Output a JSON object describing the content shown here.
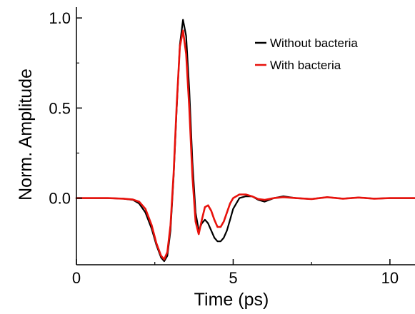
{
  "chart_data": {
    "type": "line",
    "xlabel": "Time (ps)",
    "ylabel": "Norm. Amplitude",
    "xlim": [
      0,
      10.8
    ],
    "ylim": [
      -0.37,
      1.06
    ],
    "xticks": [
      0,
      5,
      10
    ],
    "xtick_labels": [
      "0",
      "5",
      "10"
    ],
    "yticks": [
      0.0,
      0.5,
      1.0
    ],
    "ytick_labels": [
      "0.0",
      "0.5",
      "1.0"
    ],
    "grid": false,
    "legend_position": "top-right",
    "series": [
      {
        "name": "Without bacteria",
        "color": "#000000",
        "x": [
          0,
          0.5,
          1.0,
          1.5,
          1.8,
          2.0,
          2.2,
          2.4,
          2.55,
          2.7,
          2.8,
          2.9,
          3.0,
          3.1,
          3.2,
          3.3,
          3.4,
          3.5,
          3.6,
          3.7,
          3.8,
          3.9,
          4.0,
          4.1,
          4.2,
          4.3,
          4.4,
          4.5,
          4.6,
          4.7,
          4.8,
          4.9,
          5.0,
          5.2,
          5.4,
          5.6,
          5.8,
          6.0,
          6.3,
          6.6,
          7.0,
          7.5,
          8.0,
          8.5,
          9.0,
          9.5,
          10.0,
          10.5,
          10.8
        ],
        "y": [
          0.0,
          0.0,
          0.0,
          -0.003,
          -0.01,
          -0.03,
          -0.08,
          -0.17,
          -0.26,
          -0.33,
          -0.35,
          -0.32,
          -0.18,
          0.12,
          0.5,
          0.85,
          0.99,
          0.9,
          0.6,
          0.2,
          -0.08,
          -0.18,
          -0.14,
          -0.12,
          -0.14,
          -0.18,
          -0.22,
          -0.24,
          -0.24,
          -0.22,
          -0.18,
          -0.12,
          -0.06,
          0.0,
          0.01,
          0.01,
          -0.01,
          -0.02,
          0.0,
          0.01,
          0.0,
          -0.005,
          0.005,
          -0.003,
          0.003,
          -0.003,
          0.0,
          0.0,
          0.0
        ]
      },
      {
        "name": "With bacteria",
        "color": "#e8120c",
        "x": [
          0,
          0.5,
          1.0,
          1.5,
          1.8,
          2.0,
          2.2,
          2.4,
          2.55,
          2.7,
          2.8,
          2.9,
          3.0,
          3.1,
          3.2,
          3.3,
          3.4,
          3.5,
          3.6,
          3.7,
          3.8,
          3.9,
          4.0,
          4.1,
          4.2,
          4.3,
          4.4,
          4.5,
          4.6,
          4.7,
          4.8,
          4.9,
          5.0,
          5.2,
          5.4,
          5.6,
          5.8,
          6.0,
          6.3,
          6.6,
          7.0,
          7.5,
          8.0,
          8.5,
          9.0,
          9.5,
          10.0,
          10.5,
          10.8
        ],
        "y": [
          0.0,
          0.0,
          0.0,
          -0.003,
          -0.008,
          -0.02,
          -0.06,
          -0.15,
          -0.25,
          -0.32,
          -0.34,
          -0.3,
          -0.15,
          0.14,
          0.52,
          0.84,
          0.93,
          0.8,
          0.5,
          0.12,
          -0.13,
          -0.2,
          -0.12,
          -0.05,
          -0.04,
          -0.07,
          -0.12,
          -0.16,
          -0.16,
          -0.13,
          -0.08,
          -0.03,
          0.0,
          0.02,
          0.02,
          0.01,
          -0.005,
          -0.01,
          0.0,
          0.005,
          0.0,
          -0.005,
          0.005,
          -0.003,
          0.003,
          -0.003,
          0.0,
          0.0,
          0.0
        ]
      }
    ]
  }
}
